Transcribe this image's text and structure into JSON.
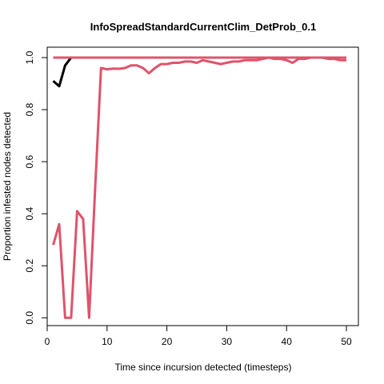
{
  "chart_data": {
    "type": "line",
    "title": "InfoSpreadStandardCurrentClim_DetProb_0.1",
    "xlabel": "Time since incursion detected (timesteps)",
    "ylabel": "Proportion infested nodes detected",
    "xlim": [
      0,
      52
    ],
    "ylim": [
      -0.03,
      1.04
    ],
    "xticks": [
      0,
      10,
      20,
      30,
      40,
      50
    ],
    "yticks": [
      0.0,
      0.2,
      0.4,
      0.6,
      0.8,
      1.0
    ],
    "xtick_labels": [
      "0",
      "10",
      "20",
      "30",
      "40",
      "50"
    ],
    "ytick_labels": [
      "0.0",
      "0.2",
      "0.4",
      "0.6",
      "0.8",
      "1.0"
    ],
    "grid": false,
    "legend": "none",
    "series": [
      {
        "color": "#000000",
        "x": [
          1,
          2,
          3,
          4
        ],
        "y": [
          0.91,
          0.89,
          0.97,
          1.0
        ]
      },
      {
        "color": "#DF536B",
        "x": [
          1,
          50
        ],
        "y": [
          1.0,
          1.0
        ]
      },
      {
        "color": "#DF536B",
        "x": [
          1,
          2,
          3,
          4,
          5,
          6,
          7,
          8,
          9,
          10,
          11,
          12,
          13,
          14,
          15,
          16,
          17,
          18,
          19,
          20,
          21,
          22,
          23,
          24,
          25,
          26,
          27,
          28,
          29,
          30,
          31,
          32,
          33,
          34,
          35,
          36,
          37,
          38,
          39,
          40,
          41,
          42,
          43,
          44,
          45,
          46,
          47,
          48,
          49,
          50
        ],
        "y": [
          0.28,
          0.36,
          0.0,
          0.0,
          0.41,
          0.38,
          0.0,
          0.49,
          0.96,
          0.955,
          0.958,
          0.957,
          0.96,
          0.97,
          0.97,
          0.96,
          0.94,
          0.96,
          0.975,
          0.975,
          0.98,
          0.98,
          0.985,
          0.985,
          0.98,
          0.99,
          0.985,
          0.98,
          0.975,
          0.98,
          0.985,
          0.985,
          0.99,
          0.99,
          0.99,
          0.995,
          1.0,
          0.995,
          0.995,
          0.99,
          0.98,
          0.995,
          0.995,
          1.0,
          1.0,
          1.0,
          0.995,
          0.995,
          0.99,
          0.99
        ]
      }
    ]
  }
}
